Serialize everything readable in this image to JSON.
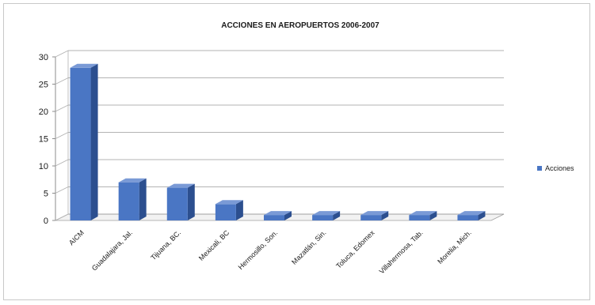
{
  "chart_data": {
    "type": "bar",
    "title": "ACCIONES EN AEROPUERTOS 2006-2007",
    "categories": [
      "AICM",
      "Guadalajara, Jal.",
      "Tijuana, BC.",
      "Mexicali, BC",
      "Hermosillo, Son.",
      "Mazatlán, Sin.",
      "Toluca, Edomex",
      "Villahermosa, Tab.",
      "Morelia, Mich."
    ],
    "series": [
      {
        "name": "Acciones",
        "values": [
          28,
          7,
          6,
          3,
          1,
          1,
          1,
          1,
          1
        ],
        "color": "#4a76c4"
      }
    ],
    "y_ticks": [
      "0",
      "5",
      "10",
      "15",
      "20",
      "25",
      "30"
    ],
    "ylim": [
      0,
      30
    ],
    "grid": true,
    "legend_position": "right",
    "style": "3d-column"
  }
}
